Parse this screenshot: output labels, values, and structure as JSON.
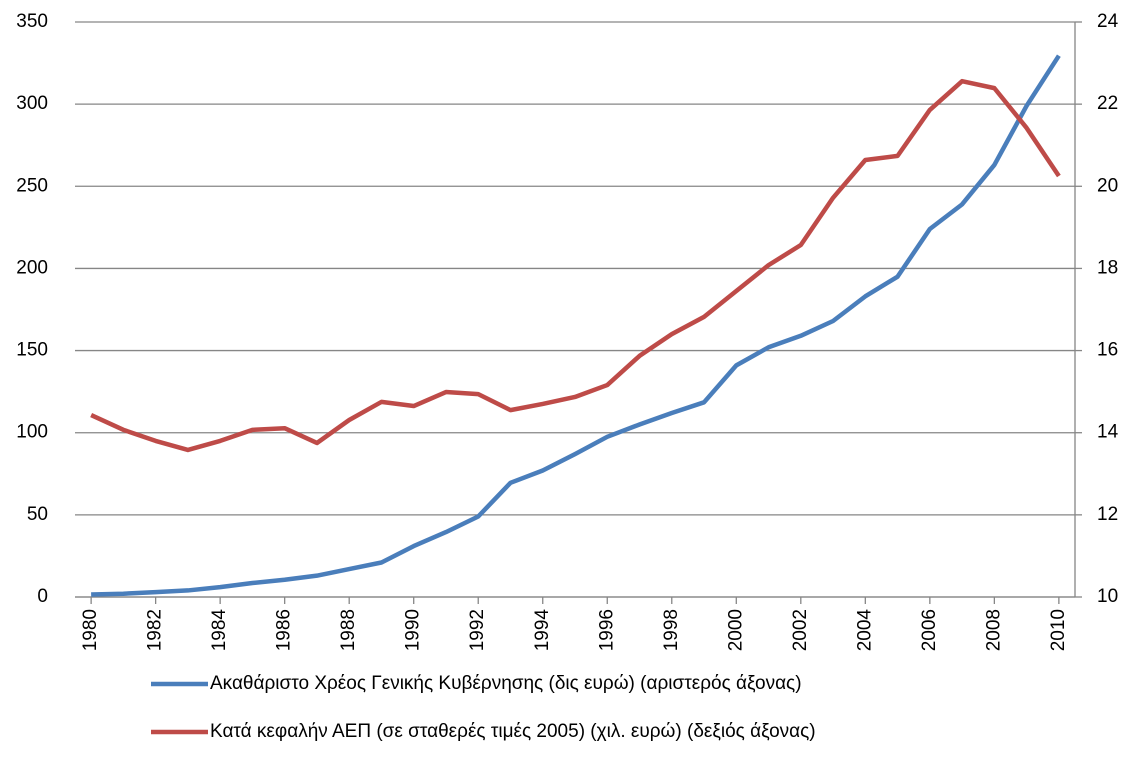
{
  "chart_data": {
    "type": "line",
    "x": [
      1980,
      1981,
      1982,
      1983,
      1984,
      1985,
      1986,
      1987,
      1988,
      1989,
      1990,
      1991,
      1992,
      1993,
      1994,
      1995,
      1996,
      1997,
      1998,
      1999,
      2000,
      2001,
      2002,
      2003,
      2004,
      2005,
      2006,
      2007,
      2008,
      2009,
      2010
    ],
    "xlim": [
      1979.5,
      2010.5
    ],
    "xticks": [
      1980,
      1982,
      1984,
      1986,
      1988,
      1990,
      1992,
      1994,
      1996,
      1998,
      2000,
      2002,
      2004,
      2006,
      2008,
      2010
    ],
    "ylim": [
      0,
      350
    ],
    "yticks": [
      0,
      50,
      100,
      150,
      200,
      250,
      300,
      350
    ],
    "y2lim": [
      10,
      24
    ],
    "y2ticks": [
      10,
      12,
      14,
      16,
      18,
      20,
      22,
      24
    ],
    "grid": true,
    "legend": "bottom",
    "series": [
      {
        "name": "Ακαθάριστο Χρέος Γενικής Κυβέρνησης (δις ευρώ) (αριστερός άξονας)",
        "color": "#4a7ebb",
        "values": [
          1.5,
          2,
          3,
          4,
          6,
          8.5,
          10.5,
          13,
          17,
          21,
          31,
          39.5,
          49,
          69.5,
          77,
          87,
          97.5,
          105,
          112,
          118.5,
          141,
          152,
          159,
          168,
          183,
          195,
          224,
          239,
          263,
          299,
          329.5
        ]
      },
      {
        "name": "Κατά κεφαλήν ΑΕΠ (σε σταθερές τιμές 2005) (χιλ. ευρώ) (δεξιός άξονας)",
        "color": "#be4b48",
        "axis": "y2",
        "values": [
          14.43,
          14.07,
          13.8,
          13.58,
          13.8,
          14.07,
          14.11,
          13.75,
          14.31,
          14.75,
          14.65,
          14.99,
          14.94,
          14.55,
          14.7,
          14.87,
          15.16,
          15.87,
          16.4,
          16.82,
          17.45,
          18.08,
          18.57,
          19.72,
          20.64,
          20.74,
          21.86,
          22.56,
          22.39,
          21.42,
          20.25
        ]
      }
    ]
  }
}
